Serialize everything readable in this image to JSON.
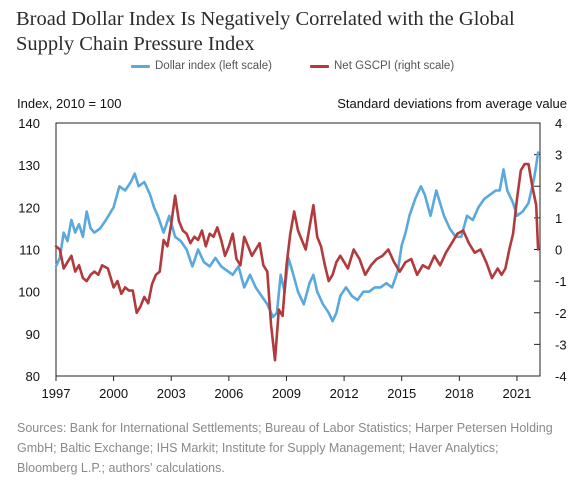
{
  "header": {
    "title": "Broad Dollar Index Is Negatively Correlated with the Global Supply Chain Pressure Index"
  },
  "legend": [
    {
      "label": "Dollar index (left scale)",
      "color": "#5aa9dd"
    },
    {
      "label": "Net GSCPI (right scale)",
      "color": "#b13a3d"
    }
  ],
  "axes_units": {
    "left": "Index, 2010 = 100",
    "right": "Standard deviations from average value"
  },
  "source": "Sources: Bank for International Settlements; Bureau of Labor Statistics; Harper Petersen Holding GmbH; Baltic Exchange; IHS Markit; Institute for Supply Management; Haver Analytics; Bloomberg L.P.; authors' calculations.",
  "chart_data": {
    "type": "line",
    "xlim": [
      1997.0,
      2022.2
    ],
    "x_ticks": [
      "1997",
      "2000",
      "2003",
      "2006",
      "2009",
      "2012",
      "2015",
      "2018",
      "2021"
    ],
    "y_left": {
      "lim": [
        80,
        140
      ],
      "ticks": [
        "80",
        "90",
        "100",
        "110",
        "120",
        "130",
        "140"
      ]
    },
    "y_right": {
      "lim": [
        -4,
        4
      ],
      "ticks": [
        "-4",
        "-3",
        "-2",
        "-1",
        "0",
        "1",
        "2",
        "3",
        "4"
      ]
    },
    "grid": false,
    "series": [
      {
        "name": "Dollar index (left scale)",
        "axis": "left",
        "color": "#5aa9dd",
        "x": [
          1997.0,
          1997.2,
          1997.4,
          1997.6,
          1997.8,
          1998.0,
          1998.2,
          1998.4,
          1998.6,
          1998.8,
          1999.0,
          1999.3,
          1999.6,
          2000.0,
          2000.3,
          2000.6,
          2000.9,
          2001.1,
          2001.3,
          2001.6,
          2001.9,
          2002.1,
          2002.3,
          2002.6,
          2002.9,
          2003.2,
          2003.5,
          2003.8,
          2004.1,
          2004.4,
          2004.7,
          2005.0,
          2005.3,
          2005.6,
          2005.9,
          2006.2,
          2006.5,
          2006.8,
          2007.1,
          2007.4,
          2007.7,
          2008.0,
          2008.3,
          2008.5,
          2008.7,
          2008.9,
          2009.1,
          2009.3,
          2009.6,
          2009.9,
          2010.2,
          2010.4,
          2010.6,
          2010.9,
          2011.2,
          2011.4,
          2011.6,
          2011.8,
          2012.1,
          2012.4,
          2012.7,
          2013.0,
          2013.3,
          2013.6,
          2013.9,
          2014.2,
          2014.5,
          2014.8,
          2015.0,
          2015.2,
          2015.4,
          2015.7,
          2016.0,
          2016.2,
          2016.5,
          2016.8,
          2017.0,
          2017.2,
          2017.5,
          2017.8,
          2018.1,
          2018.4,
          2018.7,
          2019.0,
          2019.3,
          2019.6,
          2019.9,
          2020.1,
          2020.3,
          2020.5,
          2020.8,
          2021.0,
          2021.3,
          2021.6,
          2021.9,
          2022.0,
          2022.1
        ],
        "y": [
          106,
          108,
          114,
          112,
          117,
          114,
          116,
          113,
          119,
          115,
          114,
          115,
          117,
          120,
          125,
          124,
          126,
          128,
          125,
          126,
          123,
          120,
          118,
          114,
          118,
          113,
          112,
          110,
          106,
          110,
          107,
          106,
          108,
          106,
          105,
          104,
          106,
          101,
          104,
          101,
          99,
          97,
          94,
          95,
          104,
          100,
          108,
          105,
          100,
          97,
          102,
          104,
          100,
          97,
          95,
          93,
          95,
          99,
          101,
          99,
          98,
          100,
          100,
          101,
          101,
          102,
          101,
          105,
          111,
          114,
          118,
          122,
          125,
          123,
          118,
          124,
          121,
          118,
          115,
          113,
          113,
          118,
          117,
          120,
          122,
          123,
          124,
          124,
          129,
          124,
          121,
          118,
          119,
          121,
          127,
          130,
          133
        ]
      },
      {
        "name": "Net GSCPI (right scale)",
        "axis": "right",
        "color": "#b13a3d",
        "x": [
          1997.0,
          1997.2,
          1997.4,
          1997.6,
          1997.8,
          1998.0,
          1998.2,
          1998.4,
          1998.6,
          1998.8,
          1999.0,
          1999.2,
          1999.4,
          1999.7,
          2000.0,
          2000.2,
          2000.4,
          2000.6,
          2000.8,
          2001.0,
          2001.2,
          2001.4,
          2001.6,
          2001.8,
          2002.0,
          2002.2,
          2002.4,
          2002.6,
          2002.8,
          2003.0,
          2003.2,
          2003.4,
          2003.6,
          2003.8,
          2004.0,
          2004.2,
          2004.4,
          2004.6,
          2004.8,
          2005.0,
          2005.2,
          2005.4,
          2005.6,
          2005.8,
          2006.0,
          2006.2,
          2006.4,
          2006.6,
          2006.8,
          2007.0,
          2007.2,
          2007.4,
          2007.6,
          2007.8,
          2008.0,
          2008.2,
          2008.4,
          2008.6,
          2008.8,
          2009.0,
          2009.2,
          2009.4,
          2009.6,
          2009.8,
          2010.0,
          2010.2,
          2010.4,
          2010.6,
          2010.8,
          2011.0,
          2011.2,
          2011.4,
          2011.6,
          2011.8,
          2012.0,
          2012.2,
          2012.5,
          2012.8,
          2013.1,
          2013.4,
          2013.7,
          2014.0,
          2014.3,
          2014.6,
          2014.9,
          2015.2,
          2015.5,
          2015.8,
          2016.1,
          2016.4,
          2016.7,
          2017.0,
          2017.3,
          2017.6,
          2017.9,
          2018.2,
          2018.5,
          2018.8,
          2019.1,
          2019.4,
          2019.7,
          2020.0,
          2020.2,
          2020.4,
          2020.6,
          2020.8,
          2021.0,
          2021.2,
          2021.4,
          2021.6,
          2021.8,
          2022.0,
          2022.1
        ],
        "y": [
          0.1,
          0.0,
          -0.6,
          -0.4,
          -0.2,
          -0.7,
          -0.5,
          -0.9,
          -1.0,
          -0.8,
          -0.7,
          -0.8,
          -0.5,
          -0.6,
          -1.2,
          -1.0,
          -1.4,
          -1.2,
          -1.3,
          -1.3,
          -2.0,
          -1.8,
          -1.5,
          -1.7,
          -1.1,
          -0.8,
          -0.7,
          0.3,
          0.1,
          0.8,
          1.7,
          0.9,
          0.6,
          0.5,
          0.2,
          0.4,
          0.3,
          0.6,
          0.1,
          0.5,
          0.4,
          0.7,
          0.3,
          -0.2,
          0.1,
          0.5,
          -0.3,
          -0.5,
          0.4,
          0.1,
          -0.2,
          0.0,
          0.2,
          -0.5,
          -0.7,
          -2.4,
          -3.5,
          -1.9,
          -2.1,
          -0.5,
          0.5,
          1.2,
          0.6,
          0.3,
          0.0,
          0.7,
          1.4,
          0.4,
          0.1,
          -0.5,
          -1.0,
          -0.8,
          -0.4,
          -0.2,
          -0.4,
          -0.6,
          0.0,
          -0.3,
          -0.8,
          -0.5,
          -0.3,
          -0.2,
          0.0,
          -0.4,
          -0.7,
          -0.4,
          -0.3,
          -0.8,
          -0.5,
          -0.6,
          -0.2,
          -0.5,
          -0.1,
          0.2,
          0.5,
          0.6,
          0.2,
          -0.1,
          0.0,
          -0.4,
          -0.9,
          -0.6,
          -0.8,
          -0.6,
          0.0,
          0.5,
          1.6,
          2.5,
          2.7,
          2.7,
          2.0,
          1.4,
          0.0
        ]
      }
    ]
  }
}
